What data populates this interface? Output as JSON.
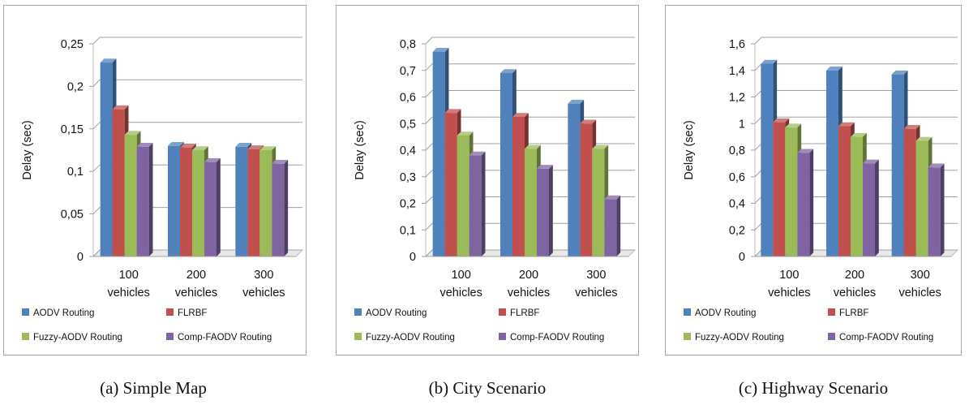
{
  "chart_data": [
    {
      "type": "bar",
      "caption": "(a) Simple Map",
      "ylabel": "Delay (sec)",
      "ylim": [
        0,
        0.25
      ],
      "yticks": [
        "0",
        "0,05",
        "0,1",
        "0,15",
        "0,2",
        "0,25"
      ],
      "categories": [
        [
          "100",
          "vehicles"
        ],
        [
          "200",
          "vehicles"
        ],
        [
          "300",
          "vehicles"
        ]
      ],
      "series": [
        {
          "name": "AODV Routing",
          "color": "#4f81bd",
          "values": [
            0.228,
            0.13,
            0.129
          ]
        },
        {
          "name": "FLRBF",
          "color": "#c0504d",
          "values": [
            0.173,
            0.128,
            0.126
          ]
        },
        {
          "name": "Fuzzy-AODV Routing",
          "color": "#9bbb59",
          "values": [
            0.143,
            0.125,
            0.125
          ]
        },
        {
          "name": "Comp-FAODV Routing",
          "color": "#8064a2",
          "values": [
            0.129,
            0.111,
            0.109
          ]
        }
      ]
    },
    {
      "type": "bar",
      "caption": "(b) City Scenario",
      "ylabel": "Delay (sec)",
      "ylim": [
        0,
        0.8
      ],
      "yticks": [
        "0",
        "0,1",
        "0,2",
        "0,3",
        "0,4",
        "0,5",
        "0,6",
        "0,7",
        "0,8"
      ],
      "categories": [
        [
          "100",
          "vehicles"
        ],
        [
          "200",
          "vehicles"
        ],
        [
          "300",
          "vehicles"
        ]
      ],
      "series": [
        {
          "name": "AODV Routing",
          "color": "#4f81bd",
          "values": [
            0.77,
            0.69,
            0.575
          ]
        },
        {
          "name": "FLRBF",
          "color": "#c0504d",
          "values": [
            0.54,
            0.525,
            0.5
          ]
        },
        {
          "name": "Fuzzy-AODV Routing",
          "color": "#9bbb59",
          "values": [
            0.455,
            0.405,
            0.405
          ]
        },
        {
          "name": "Comp-FAODV Routing",
          "color": "#8064a2",
          "values": [
            0.38,
            0.33,
            0.215
          ]
        }
      ]
    },
    {
      "type": "bar",
      "caption": "(c) Highway Scenario",
      "ylabel": "Delay (sec)",
      "ylim": [
        0,
        1.6
      ],
      "yticks": [
        "0",
        "0,2",
        "0,4",
        "0,6",
        "0,8",
        "1",
        "1,2",
        "1,4",
        "1,6"
      ],
      "categories": [
        [
          "100",
          "vehicles"
        ],
        [
          "200",
          "vehicles"
        ],
        [
          "300",
          "vehicles"
        ]
      ],
      "series": [
        {
          "name": "AODV Routing",
          "color": "#4f81bd",
          "values": [
            1.45,
            1.4,
            1.37
          ]
        },
        {
          "name": "FLRBF",
          "color": "#c0504d",
          "values": [
            1.01,
            0.98,
            0.96
          ]
        },
        {
          "name": "Fuzzy-AODV Routing",
          "color": "#9bbb59",
          "values": [
            0.97,
            0.9,
            0.87
          ]
        },
        {
          "name": "Comp-FAODV Routing",
          "color": "#8064a2",
          "values": [
            0.78,
            0.7,
            0.67
          ]
        }
      ]
    }
  ]
}
